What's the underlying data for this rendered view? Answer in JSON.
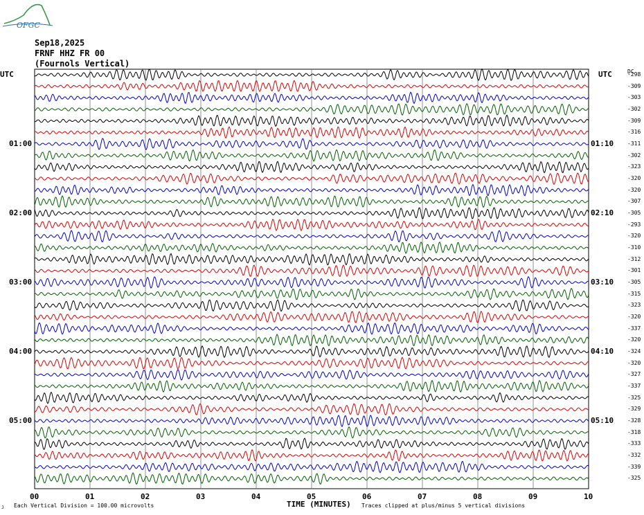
{
  "logo": {
    "text": "OFGC",
    "color": "#2e6fa8",
    "mountain_color": "#3a9a4a"
  },
  "header": {
    "date": "Sep18,2025",
    "station": "FRNF HHZ FR 00",
    "location": "(Fournols Vertical)"
  },
  "labels": {
    "utc_left": "UTC",
    "utc_right": "UTC",
    "dc": "DC"
  },
  "chart_data": {
    "type": "line",
    "title": "Sep18,2025 FRNF HHZ FR 00 (Fournols Vertical)",
    "xlabel": "TIME (MINUTES)",
    "x_ticks": [
      "00",
      "01",
      "02",
      "03",
      "04",
      "05",
      "06",
      "07",
      "08",
      "09",
      "10"
    ],
    "xlim": [
      0,
      10
    ],
    "trace_colors": [
      "#000000",
      "#e00000",
      "#0000d0",
      "#006000"
    ],
    "trace_count": 36,
    "left_time_labels": [
      {
        "row": 6,
        "text": "01:00"
      },
      {
        "row": 12,
        "text": "02:00"
      },
      {
        "row": 18,
        "text": "03:00"
      },
      {
        "row": 24,
        "text": "04:00"
      },
      {
        "row": 30,
        "text": "05:00"
      }
    ],
    "right_time_labels": [
      {
        "row": 6,
        "text": "01:10"
      },
      {
        "row": 12,
        "text": "02:10"
      },
      {
        "row": 18,
        "text": "03:10"
      },
      {
        "row": 24,
        "text": "04:10"
      },
      {
        "row": 30,
        "text": "05:10"
      }
    ],
    "dc_offsets": [
      "-298",
      "-309",
      "-303",
      "-302",
      "-309",
      "-316",
      "-311",
      "-302",
      "-323",
      "-320",
      "-320",
      "-307",
      "-305",
      "-293",
      "-320",
      "-310",
      "-312",
      "-301",
      "-305",
      "-315",
      "-323",
      "-320",
      "-337",
      "-320",
      "-324",
      "-320",
      "-327",
      "-337",
      "-325",
      "-329",
      "-328",
      "-318",
      "-333",
      "-332",
      "-339",
      "-325"
    ],
    "grid": true
  },
  "footer": {
    "scale_note": "Each Vertical Division = 100.00 microvolts",
    "clip_note": "Traces clipped at plus/minus 5 vertical divisions",
    "corner_mark": "J"
  }
}
